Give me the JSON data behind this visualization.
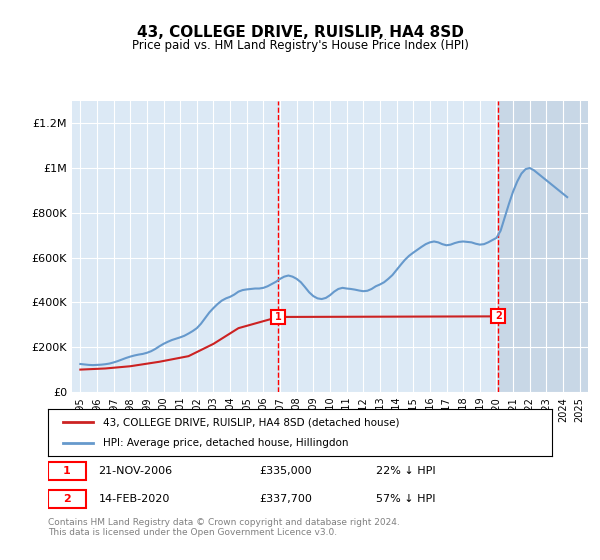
{
  "title": "43, COLLEGE DRIVE, RUISLIP, HA4 8SD",
  "subtitle": "Price paid vs. HM Land Registry's House Price Index (HPI)",
  "footer": "Contains HM Land Registry data © Crown copyright and database right 2024.\nThis data is licensed under the Open Government Licence v3.0.",
  "legend_entries": [
    "43, COLLEGE DRIVE, RUISLIP, HA4 8SD (detached house)",
    "HPI: Average price, detached house, Hillingdon"
  ],
  "sale1": {
    "label": "1",
    "date": "21-NOV-2006",
    "price": "£335,000",
    "hpi": "22% ↓ HPI"
  },
  "sale2": {
    "label": "2",
    "date": "14-FEB-2020",
    "price": "£337,700",
    "hpi": "57% ↓ HPI"
  },
  "ylim": [
    0,
    1300000
  ],
  "yticks": [
    0,
    200000,
    400000,
    600000,
    800000,
    1000000,
    1200000
  ],
  "ytick_labels": [
    "£0",
    "£200K",
    "£400K",
    "£600K",
    "£800K",
    "£1M",
    "£1.2M"
  ],
  "background_color": "#dce9f5",
  "plot_bg_color": "#dce9f5",
  "hatch_region_color": "#c8d8ea",
  "sale1_x": 2006.9,
  "sale2_x": 2020.12,
  "hpi_line_color": "#6699cc",
  "price_line_color": "#cc2222",
  "hpi_data_x": [
    1995.0,
    1995.25,
    1995.5,
    1995.75,
    1996.0,
    1996.25,
    1996.5,
    1996.75,
    1997.0,
    1997.25,
    1997.5,
    1997.75,
    1998.0,
    1998.25,
    1998.5,
    1998.75,
    1999.0,
    1999.25,
    1999.5,
    1999.75,
    2000.0,
    2000.25,
    2000.5,
    2000.75,
    2001.0,
    2001.25,
    2001.5,
    2001.75,
    2002.0,
    2002.25,
    2002.5,
    2002.75,
    2003.0,
    2003.25,
    2003.5,
    2003.75,
    2004.0,
    2004.25,
    2004.5,
    2004.75,
    2005.0,
    2005.25,
    2005.5,
    2005.75,
    2006.0,
    2006.25,
    2006.5,
    2006.75,
    2007.0,
    2007.25,
    2007.5,
    2007.75,
    2008.0,
    2008.25,
    2008.5,
    2008.75,
    2009.0,
    2009.25,
    2009.5,
    2009.75,
    2010.0,
    2010.25,
    2010.5,
    2010.75,
    2011.0,
    2011.25,
    2011.5,
    2011.75,
    2012.0,
    2012.25,
    2012.5,
    2012.75,
    2013.0,
    2013.25,
    2013.5,
    2013.75,
    2014.0,
    2014.25,
    2014.5,
    2014.75,
    2015.0,
    2015.25,
    2015.5,
    2015.75,
    2016.0,
    2016.25,
    2016.5,
    2016.75,
    2017.0,
    2017.25,
    2017.5,
    2017.75,
    2018.0,
    2018.25,
    2018.5,
    2018.75,
    2019.0,
    2019.25,
    2019.5,
    2019.75,
    2020.0,
    2020.25,
    2020.5,
    2020.75,
    2021.0,
    2021.25,
    2021.5,
    2021.75,
    2022.0,
    2022.25,
    2022.5,
    2022.75,
    2023.0,
    2023.25,
    2023.5,
    2023.75,
    2024.0,
    2024.25
  ],
  "hpi_data_y": [
    125000,
    123000,
    121000,
    120000,
    121000,
    122000,
    124000,
    127000,
    132000,
    138000,
    145000,
    152000,
    158000,
    163000,
    167000,
    170000,
    175000,
    182000,
    192000,
    204000,
    215000,
    224000,
    232000,
    238000,
    244000,
    251000,
    261000,
    272000,
    285000,
    305000,
    330000,
    355000,
    375000,
    393000,
    408000,
    418000,
    425000,
    435000,
    448000,
    455000,
    458000,
    460000,
    462000,
    462000,
    465000,
    472000,
    482000,
    492000,
    505000,
    515000,
    520000,
    515000,
    505000,
    490000,
    468000,
    445000,
    428000,
    418000,
    415000,
    420000,
    432000,
    448000,
    460000,
    465000,
    462000,
    460000,
    457000,
    453000,
    450000,
    452000,
    460000,
    472000,
    480000,
    490000,
    505000,
    522000,
    545000,
    568000,
    590000,
    608000,
    622000,
    635000,
    648000,
    660000,
    668000,
    672000,
    668000,
    660000,
    655000,
    658000,
    665000,
    670000,
    672000,
    670000,
    668000,
    662000,
    658000,
    660000,
    668000,
    678000,
    688000,
    720000,
    780000,
    840000,
    895000,
    940000,
    975000,
    995000,
    1000000,
    990000,
    975000,
    960000,
    945000,
    930000,
    915000,
    900000,
    885000,
    870000
  ],
  "price_data_x": [
    1995.0,
    1996.5,
    1998.0,
    1999.75,
    2001.5,
    2003.0,
    2004.5,
    2006.9,
    2020.12
  ],
  "price_data_y": [
    100000,
    105000,
    115000,
    135000,
    160000,
    215000,
    285000,
    335000,
    337700
  ],
  "xtick_years": [
    1995,
    1996,
    1997,
    1998,
    1999,
    2000,
    2001,
    2002,
    2003,
    2004,
    2005,
    2006,
    2007,
    2008,
    2009,
    2010,
    2011,
    2012,
    2013,
    2014,
    2015,
    2016,
    2017,
    2018,
    2019,
    2020,
    2021,
    2022,
    2023,
    2024,
    2025
  ]
}
